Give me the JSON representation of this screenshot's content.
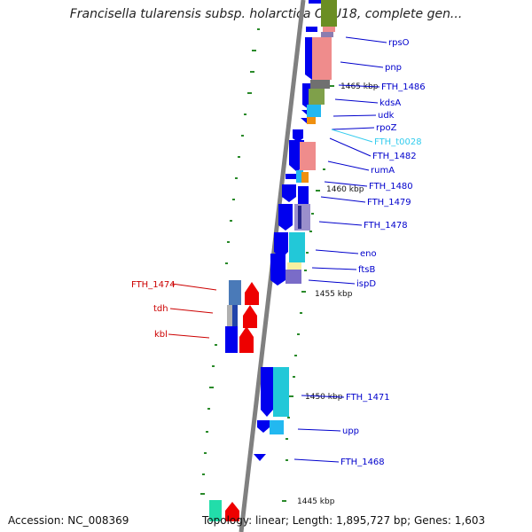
{
  "title": "Francisella tularensis subsp. holarctica OSU18, complete gen...",
  "footer": {
    "accession": "Accession: NC_008369",
    "summary": "Topology: linear; Length: 1,895,727 bp; Genes: 1,603"
  },
  "colors": {
    "backbone": "#808080",
    "tick": "#2a8a2a",
    "gene_blue": "#0000ee",
    "gene_red": "#ee0000",
    "label_blue": "#0000cc",
    "label_red": "#cc0000",
    "label_cyan": "#33ccee"
  },
  "scale_labels": [
    "1465 kbp",
    "1460 kbp",
    "1455 kbp",
    "1450 kbp",
    "1445 kbp"
  ],
  "right_labels": [
    "rpsO",
    "pnp",
    "FTH_1486",
    "kdsA",
    "udk",
    "rpoZ",
    "FTH_t0028",
    "FTH_1482",
    "rumA",
    "FTH_1480",
    "FTH_1479",
    "FTH_1478",
    "eno",
    "ftsB",
    "ispD",
    "FTH_1471",
    "upp",
    "FTH_1468"
  ],
  "left_labels": [
    "FTH_1474",
    "tdh",
    "kbl"
  ]
}
